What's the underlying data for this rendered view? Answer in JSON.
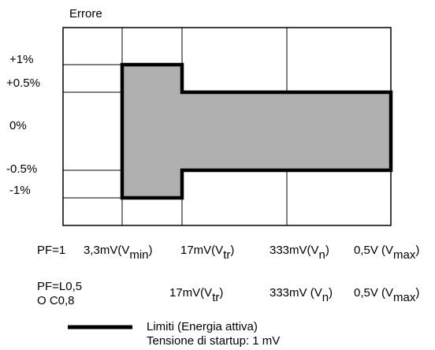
{
  "diagram": {
    "title": "Errore",
    "y_labels": [
      {
        "id": "plus1",
        "text": "+1%"
      },
      {
        "id": "plus05",
        "text": "+0.5%"
      },
      {
        "id": "zero",
        "text": "0%"
      },
      {
        "id": "minus05",
        "text": "-0.5%"
      },
      {
        "id": "minus1",
        "text": "-1%"
      }
    ],
    "pf1_row": {
      "label": "PF=1",
      "items": [
        {
          "main": "3,3mV(V",
          "sub": "min",
          "close": ")"
        },
        {
          "main": "17mV(V",
          "sub": "tr",
          "close": ")"
        },
        {
          "main": "333mV(V",
          "sub": "n",
          "close": ")"
        },
        {
          "main": "0,5V (V",
          "sub": "max",
          "close": ")"
        }
      ]
    },
    "pf05_row": {
      "label_line1": "PF=L0,5",
      "label_line2": "O C0,8",
      "items": [
        {
          "main": "17mV(V",
          "sub": "tr",
          "close": ")"
        },
        {
          "main": "333mV (V",
          "sub": "n",
          "close": ")"
        },
        {
          "main": "0,5V (V",
          "sub": "max",
          "close": ")"
        }
      ]
    },
    "legend": {
      "line1": "Limiti (Energia attiva)",
      "line2": "Tensione di startup: 1 mV"
    },
    "colors": {
      "fill": "#b0b0b0",
      "line": "#000000",
      "background": "#ffffff"
    }
  }
}
